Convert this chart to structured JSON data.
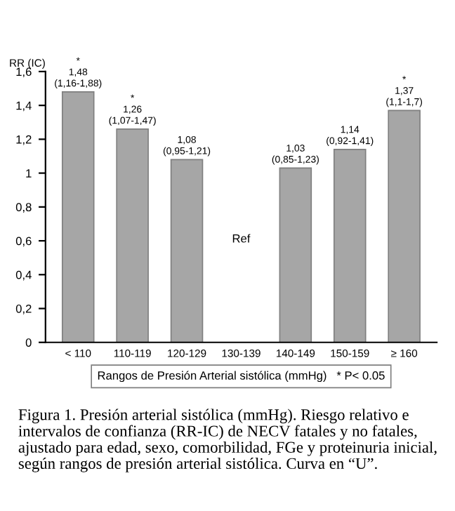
{
  "chart_data": {
    "type": "bar",
    "ylabel": "RR (IC)",
    "xlabel": "Rangos de Presión Arterial sistólica (mmHg)   * P< 0.05",
    "categories": [
      "< 110",
      "110-119",
      "120-129",
      "130-139",
      "140-149",
      "150-159",
      "≥ 160"
    ],
    "values": [
      1.48,
      1.26,
      1.08,
      null,
      1.03,
      1.14,
      1.37
    ],
    "value_labels": [
      "*\n1,48\n(1,16-1,88)",
      "*\n1,26\n(1,07-1,47)",
      "1,08\n(0,95-1,21)",
      null,
      "1,03\n(0,85-1,23)",
      "1,14\n(0,92-1,41)",
      "*\n1,37\n(1,1-1,7)"
    ],
    "color": "#a6a6a6",
    "ylim": [
      0,
      1.6
    ],
    "yticks": [
      0,
      {
        "value": 0.2,
        "label": "0,2"
      },
      {
        "value": 0.4,
        "label": "0,4"
      },
      {
        "value": 0.6,
        "label": "0,6"
      },
      {
        "value": 0.8,
        "label": "0,8"
      },
      1,
      {
        "value": 1.2,
        "label": "1,2"
      },
      {
        "value": 1.4,
        "label": "1,4"
      },
      {
        "value": 1.6,
        "label": "1,6"
      }
    ],
    "grid": false,
    "annotations": [
      "Ref",
      "Figura 1. Presión arterial sistólica (mmHg). Riesgo relativo e intervalos de confianza (RR-IC) de NECV fatales y no fatales, ajustado para edad, sexo, comorbilidad, FGe y proteinuria inicial, según rangos de presión arterial sistólica. Curva en “U”."
    ]
  }
}
